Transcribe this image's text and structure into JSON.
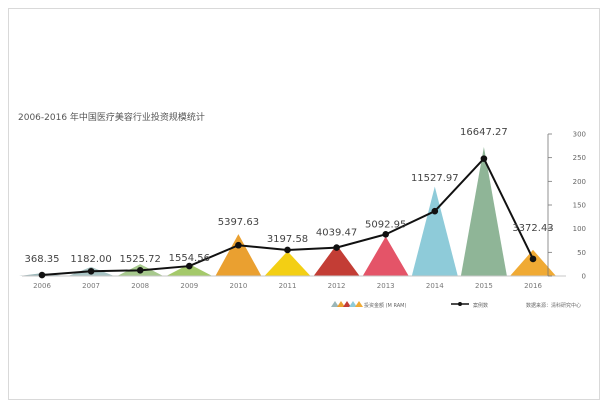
{
  "chart_data": {
    "type": "bar",
    "title": "2006-2016 年中国医疗美容行业投资规模统计",
    "categories": [
      "2006",
      "2007",
      "2008",
      "2009",
      "2010",
      "2011",
      "2012",
      "2013",
      "2014",
      "2015",
      "2016"
    ],
    "series": [
      {
        "name": "投资金额 (M RAM)",
        "type": "bar",
        "values": [
          368.35,
          1182.0,
          1525.72,
          1554.56,
          5397.63,
          3197.58,
          4039.47,
          5092.95,
          11527.97,
          16647.27,
          3372.43
        ],
        "labels": [
          "368.35",
          "1182.00",
          "1525.72",
          "1554.56",
          "5397.63",
          "3197.58",
          "4039.47",
          "5092.95",
          "11527.97",
          "16647.27",
          "3372.43"
        ]
      },
      {
        "name": "案例数",
        "type": "line",
        "values": [
          2,
          10,
          12,
          21,
          65,
          55,
          60,
          88,
          137,
          248,
          36
        ]
      }
    ],
    "y2_ticks": [
      0,
      50,
      100,
      150,
      200,
      250,
      300
    ],
    "y2lim": [
      0,
      300
    ],
    "source": "数据来源：清科研究中心",
    "colors": {
      "bars": [
        "#9ab6b8",
        "#a8c4c4",
        "#a7c98d",
        "#a4c96a",
        "#eaa030",
        "#f3cf14",
        "#c33d35",
        "#e45468",
        "#8ecbd9",
        "#8fb597",
        "#f0aa34"
      ],
      "line": "#111111",
      "marker": "#111111",
      "axis": "#777777"
    }
  }
}
